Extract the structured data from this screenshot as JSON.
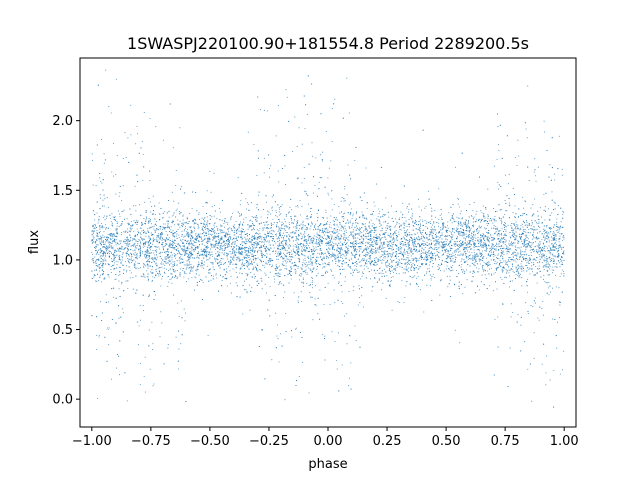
{
  "chart_data": {
    "type": "scatter",
    "title": "1SWASPJ220100.90+181554.8 Period 2289200.5s",
    "xlabel": "phase",
    "ylabel": "flux",
    "xlim": [
      -1.05,
      1.05
    ],
    "ylim": [
      -0.2,
      2.45
    ],
    "xticks": [
      -1.0,
      -0.75,
      -0.5,
      -0.25,
      0.0,
      0.25,
      0.5,
      0.75,
      1.0
    ],
    "xtick_labels": [
      "−1.00",
      "−0.75",
      "−0.50",
      "−0.25",
      "0.00",
      "0.25",
      "0.50",
      "0.75",
      "1.00"
    ],
    "yticks": [
      0.0,
      0.5,
      1.0,
      1.5,
      2.0
    ],
    "ytick_labels": [
      "0.0",
      "0.5",
      "1.0",
      "1.5",
      "2.0"
    ],
    "grid": false,
    "point_color": "#1f77b4",
    "series": [
      {
        "description_of_distribution": "dense band of points spanning phase -1 to 1",
        "core_flux_range": [
          0.85,
          1.35
        ],
        "median_flux": 1.1,
        "extended_flux_range": [
          -0.08,
          2.37
        ],
        "high_scatter_phase_intervals": [
          [
            -1.0,
            -0.6
          ],
          [
            -0.3,
            0.15
          ],
          [
            0.7,
            1.0
          ]
        ],
        "point_count_approx": 40000
      }
    ]
  }
}
